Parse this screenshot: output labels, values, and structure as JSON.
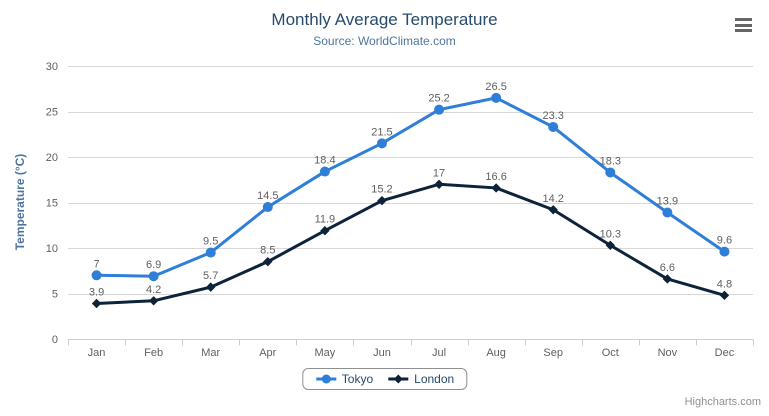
{
  "header": {
    "title": "Monthly Average Temperature",
    "subtitle": "Source: WorldClimate.com"
  },
  "chart_data": {
    "type": "line",
    "title": "Monthly Average Temperature",
    "subtitle": "Source: WorldClimate.com",
    "categories": [
      "Jan",
      "Feb",
      "Mar",
      "Apr",
      "May",
      "Jun",
      "Jul",
      "Aug",
      "Sep",
      "Oct",
      "Nov",
      "Dec"
    ],
    "series": [
      {
        "name": "Tokyo",
        "marker": "circle",
        "color": "#2f7ed8",
        "values": [
          7,
          6.9,
          9.5,
          14.5,
          18.4,
          21.5,
          25.2,
          26.5,
          23.3,
          18.3,
          13.9,
          9.6
        ]
      },
      {
        "name": "London",
        "marker": "diamond",
        "color": "#0d233a",
        "values": [
          3.9,
          4.2,
          5.7,
          8.5,
          11.9,
          15.2,
          17,
          16.6,
          14.2,
          10.3,
          6.6,
          4.8
        ]
      }
    ],
    "xlabel": "",
    "ylabel": "Temperature (°C)",
    "ylim": [
      0,
      30
    ],
    "y_ticks": [
      0,
      5,
      10,
      15,
      20,
      25,
      30
    ],
    "grid": true,
    "data_labels": true,
    "legend_position": "bottom-center"
  },
  "colors": {
    "title": "#274b6d",
    "subtitle": "#4d759e",
    "axis_label": "#606060",
    "grid_line": "#d8d8d8",
    "axis_line": "#c0d0e0",
    "legend_border": "#909090",
    "legend_text": "#274b6d",
    "credits_text": "#909090",
    "menu_icon": "#666666"
  },
  "icons": {
    "context_menu": "hamburger-icon"
  },
  "credits": "Highcharts.com"
}
